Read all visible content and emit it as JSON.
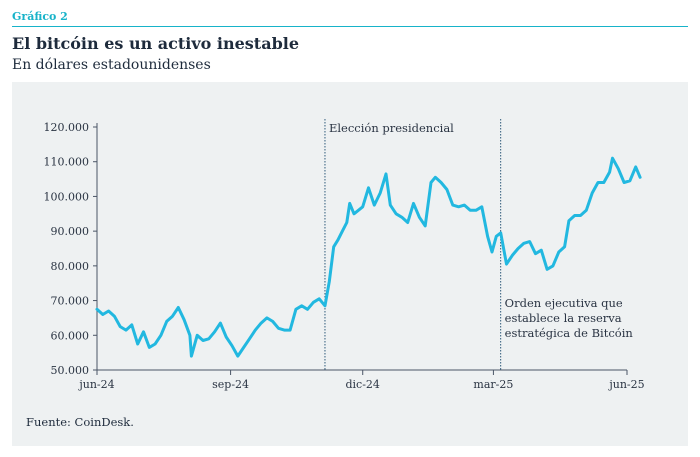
{
  "header": {
    "figure_label": "Gráfico 2",
    "title": "El bitcóin es un activo inestable",
    "subtitle": "En dólares estadounidenses"
  },
  "footer": {
    "source": "Fuente: CoinDesk."
  },
  "colors": {
    "accent": "#17b3c9",
    "line": "#22b8e0",
    "text": "#1e2b3c",
    "panel": "#eef1f2",
    "event_line": "#2e5a7a"
  },
  "chart_data": {
    "type": "line",
    "title": "",
    "xlabel": "",
    "ylabel": "",
    "x_ticks": [
      "jun-24",
      "sep-24",
      "dic-24",
      "mar-25",
      "jun-25"
    ],
    "y_ticks": [
      "50.000",
      "60.000",
      "70.000",
      "80.000",
      "90.000",
      "100.000",
      "110.000",
      "120.000"
    ],
    "ylim": [
      50000,
      120000
    ],
    "grid": false,
    "annotations": [
      {
        "date": "2024-11-05",
        "text": [
          "Elección presidencial"
        ]
      },
      {
        "date": "2025-03-06",
        "text": [
          "Orden ejecutiva que",
          "establece la reserva",
          "estratégica de Bitcóin"
        ]
      }
    ],
    "series": [
      {
        "x": [
          "2024-06-01",
          "2024-06-05",
          "2024-06-09",
          "2024-06-13",
          "2024-06-17",
          "2024-06-21",
          "2024-06-25",
          "2024-06-29",
          "2024-07-03",
          "2024-07-07",
          "2024-07-11",
          "2024-07-15",
          "2024-07-19",
          "2024-07-23",
          "2024-07-27",
          "2024-07-31",
          "2024-08-04",
          "2024-08-05",
          "2024-08-09",
          "2024-08-13",
          "2024-08-17",
          "2024-08-21",
          "2024-08-25",
          "2024-08-29",
          "2024-09-02",
          "2024-09-06",
          "2024-09-10",
          "2024-09-14",
          "2024-09-18",
          "2024-09-22",
          "2024-09-26",
          "2024-09-30",
          "2024-10-04",
          "2024-10-08",
          "2024-10-12",
          "2024-10-16",
          "2024-10-20",
          "2024-10-24",
          "2024-10-28",
          "2024-11-01",
          "2024-11-05",
          "2024-11-08",
          "2024-11-11",
          "2024-11-14",
          "2024-11-17",
          "2024-11-20",
          "2024-11-22",
          "2024-11-25",
          "2024-11-28",
          "2024-12-01",
          "2024-12-05",
          "2024-12-09",
          "2024-12-13",
          "2024-12-17",
          "2024-12-20",
          "2024-12-24",
          "2024-12-28",
          "2025-01-01",
          "2025-01-05",
          "2025-01-09",
          "2025-01-13",
          "2025-01-17",
          "2025-01-20",
          "2025-01-24",
          "2025-01-28",
          "2025-02-01",
          "2025-02-05",
          "2025-02-09",
          "2025-02-13",
          "2025-02-17",
          "2025-02-21",
          "2025-02-25",
          "2025-02-28",
          "2025-03-03",
          "2025-03-06",
          "2025-03-10",
          "2025-03-14",
          "2025-03-18",
          "2025-03-22",
          "2025-03-26",
          "2025-03-30",
          "2025-04-03",
          "2025-04-07",
          "2025-04-11",
          "2025-04-15",
          "2025-04-19",
          "2025-04-22",
          "2025-04-26",
          "2025-04-30",
          "2025-05-04",
          "2025-05-08",
          "2025-05-12",
          "2025-05-16",
          "2025-05-20",
          "2025-05-22",
          "2025-05-26",
          "2025-05-30",
          "2025-06-03",
          "2025-06-07",
          "2025-06-10"
        ],
        "y": [
          67500,
          66000,
          67000,
          65500,
          62500,
          61500,
          63000,
          57500,
          61000,
          56500,
          57500,
          60000,
          64000,
          65500,
          68000,
          64500,
          60000,
          54000,
          60000,
          58500,
          59000,
          61000,
          63500,
          59500,
          57000,
          54000,
          56500,
          59000,
          61500,
          63500,
          65000,
          64000,
          62000,
          61500,
          61500,
          67500,
          68500,
          67500,
          69500,
          70500,
          68500,
          75500,
          85500,
          87500,
          90000,
          92500,
          98000,
          95000,
          96000,
          97000,
          102500,
          97500,
          101000,
          106500,
          97500,
          95000,
          94000,
          92500,
          98000,
          94000,
          91500,
          104000,
          105500,
          104000,
          102000,
          97500,
          97000,
          97500,
          96000,
          96000,
          97000,
          88500,
          84000,
          88500,
          89500,
          80500,
          83000,
          85000,
          86500,
          87000,
          83500,
          84500,
          79000,
          80000,
          84000,
          85500,
          93000,
          94500,
          94500,
          96000,
          101000,
          104000,
          104000,
          107000,
          111000,
          108000,
          104000,
          104500,
          108500,
          105500
        ]
      }
    ]
  }
}
